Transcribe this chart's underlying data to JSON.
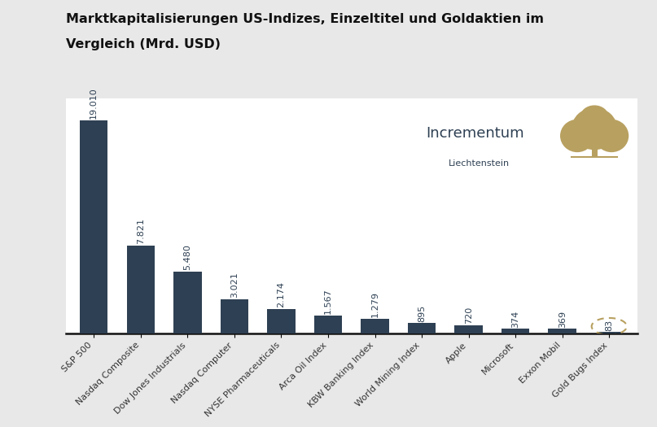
{
  "title_line1": "Marktkapitalisierungen US-Indizes, Einzeltitel und Goldaktien im",
  "title_line2": "Vergleich (Mrd. USD)",
  "categories": [
    "S&P 500",
    "Nasdaq Composite",
    "Dow Jones Industrials",
    "Nasdaq Computer",
    "NYSE Pharmaceuticals",
    "Arca Oil Index",
    "KBW Banking Index",
    "World Mining Index",
    "Apple",
    "Microsoft",
    "Exxon Mobil",
    "Gold Bugs Index"
  ],
  "values": [
    19010,
    7821,
    5480,
    3021,
    2174,
    1567,
    1279,
    895,
    720,
    374,
    369,
    83
  ],
  "labels": [
    "19.010",
    "7.821",
    "5.480",
    "3.021",
    "2.174",
    "1.567",
    "1.279",
    "895",
    "720",
    "374",
    "369",
    "83"
  ],
  "bar_color": "#2e4053",
  "background_color": "#e8e8e8",
  "plot_bg_color": "#ffffff",
  "title_fontsize": 11.5,
  "label_fontsize": 8,
  "tick_fontsize": 8,
  "incrementum_text": "Incrementum",
  "incrementum_sub": "Liechtenstein",
  "incrementum_color": "#2e4053",
  "ellipse_color": "#b8a060",
  "ylim": 21000
}
